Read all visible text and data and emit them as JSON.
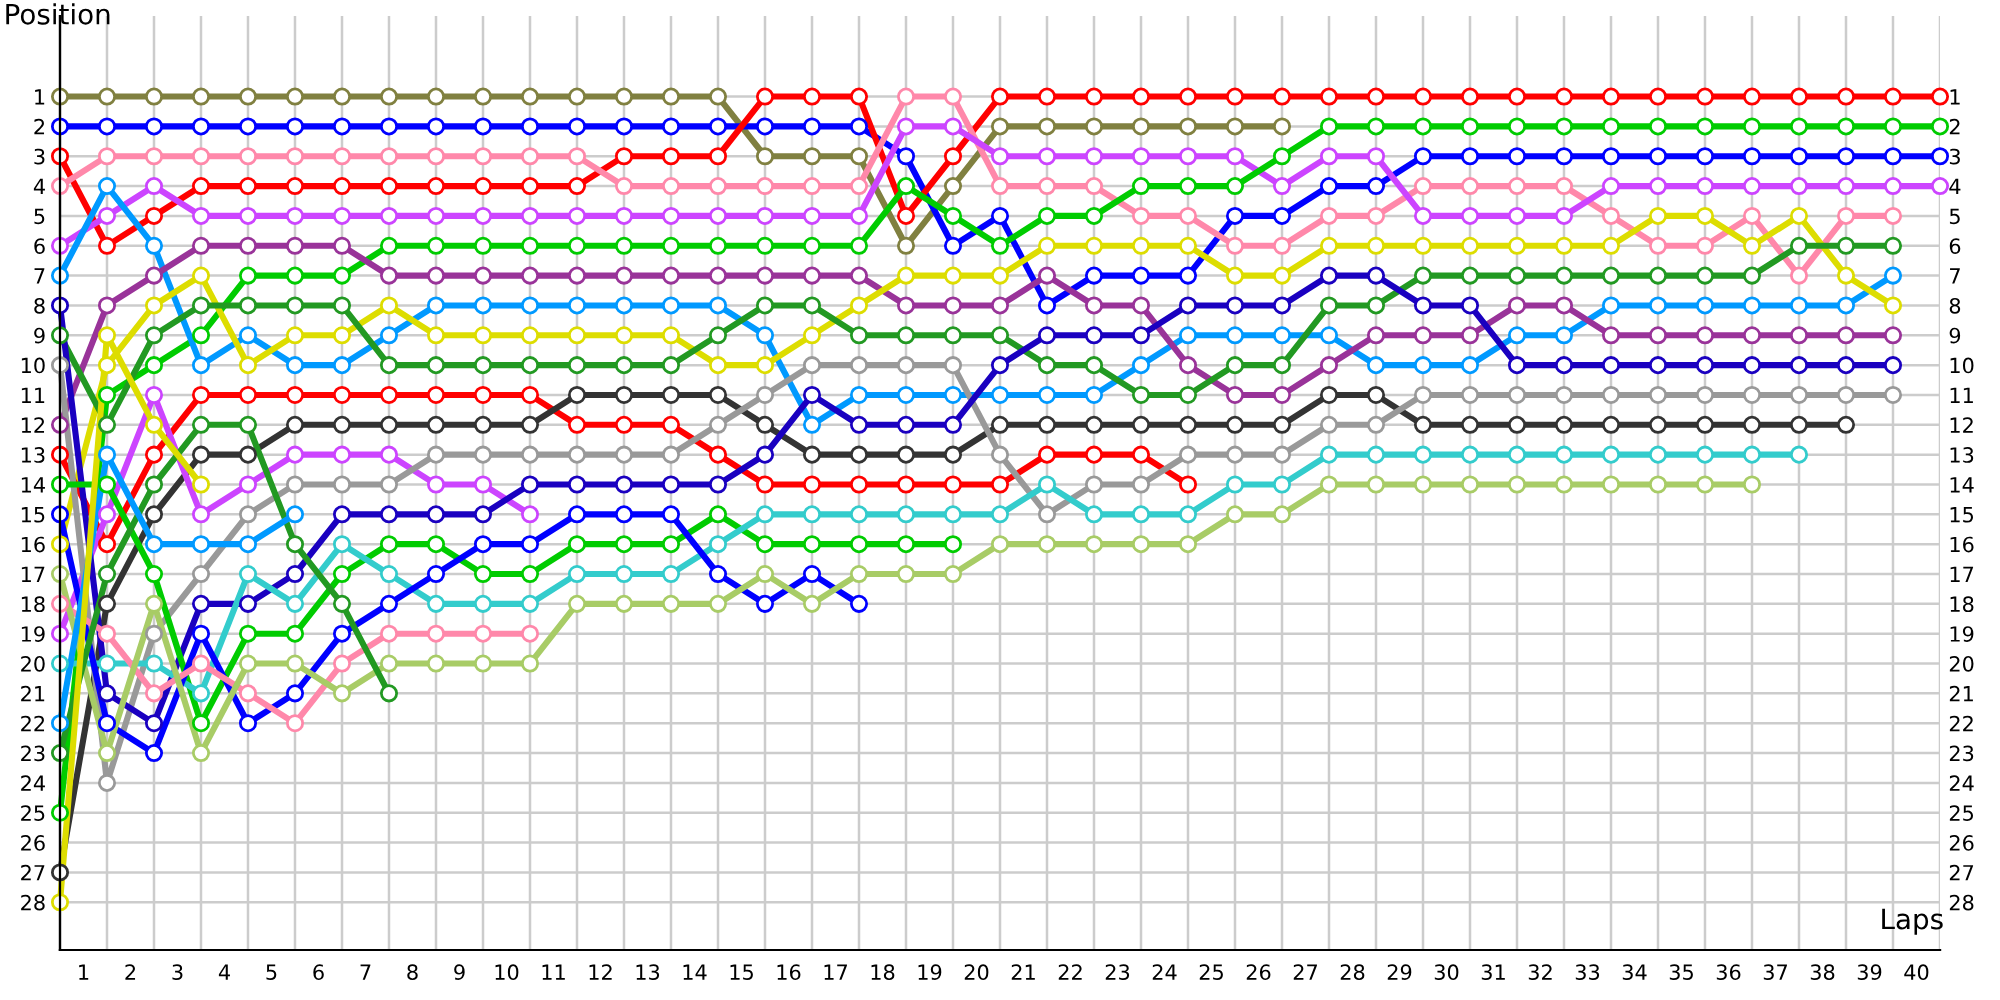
{
  "chart_data": {
    "type": "line",
    "xlabel": "Laps",
    "ylabel": "Position",
    "x": [
      0,
      1,
      2,
      3,
      4,
      5,
      6,
      7,
      8,
      9,
      10,
      11,
      12,
      13,
      14,
      15,
      16,
      17,
      18,
      19,
      20,
      21,
      22,
      23,
      24,
      25,
      26,
      27,
      28,
      29,
      30,
      31,
      32,
      33,
      34,
      35,
      36,
      37,
      38,
      39,
      40
    ],
    "xlim": [
      0,
      40
    ],
    "xticks": [
      {
        "value": 0.5,
        "label": "1"
      },
      {
        "value": 1.5,
        "label": "2"
      },
      {
        "value": 2.5,
        "label": "3"
      },
      {
        "value": 3.5,
        "label": "4"
      },
      {
        "value": 4.5,
        "label": "5"
      },
      {
        "value": 5.5,
        "label": "6"
      },
      {
        "value": 6.5,
        "label": "7"
      },
      {
        "value": 7.5,
        "label": "8"
      },
      {
        "value": 8.5,
        "label": "9"
      },
      {
        "value": 9.5,
        "label": "10"
      },
      {
        "value": 10.5,
        "label": "11"
      },
      {
        "value": 11.5,
        "label": "12"
      },
      {
        "value": 12.5,
        "label": "13"
      },
      {
        "value": 13.5,
        "label": "14"
      },
      {
        "value": 14.5,
        "label": "15"
      },
      {
        "value": 15.5,
        "label": "16"
      },
      {
        "value": 16.5,
        "label": "17"
      },
      {
        "value": 17.5,
        "label": "18"
      },
      {
        "value": 18.5,
        "label": "19"
      },
      {
        "value": 19.5,
        "label": "20"
      },
      {
        "value": 20.5,
        "label": "21"
      },
      {
        "value": 21.5,
        "label": "22"
      },
      {
        "value": 22.5,
        "label": "23"
      },
      {
        "value": 23.5,
        "label": "24"
      },
      {
        "value": 24.5,
        "label": "25"
      },
      {
        "value": 25.5,
        "label": "26"
      },
      {
        "value": 26.5,
        "label": "27"
      },
      {
        "value": 27.5,
        "label": "28"
      },
      {
        "value": 28.5,
        "label": "29"
      },
      {
        "value": 29.5,
        "label": "30"
      },
      {
        "value": 30.5,
        "label": "31"
      },
      {
        "value": 31.5,
        "label": "32"
      },
      {
        "value": 32.5,
        "label": "33"
      },
      {
        "value": 33.5,
        "label": "34"
      },
      {
        "value": 34.5,
        "label": "35"
      },
      {
        "value": 35.5,
        "label": "36"
      },
      {
        "value": 36.5,
        "label": "37"
      },
      {
        "value": 37.5,
        "label": "38"
      },
      {
        "value": 38.5,
        "label": "39"
      },
      {
        "value": 39.5,
        "label": "40"
      }
    ],
    "ylim": [
      29.6,
      -1.7
    ],
    "yticks": [
      1,
      2,
      3,
      4,
      5,
      6,
      7,
      8,
      9,
      10,
      11,
      12,
      13,
      14,
      15,
      16,
      17,
      18,
      19,
      20,
      21,
      22,
      23,
      24,
      25,
      26,
      27,
      28
    ],
    "y2lim": [
      29.6,
      -1.7
    ],
    "y2ticks": [
      1,
      2,
      3,
      4,
      5,
      6,
      7,
      8,
      9,
      10,
      11,
      12,
      13,
      14,
      15,
      16,
      17,
      18,
      19,
      20,
      21,
      22,
      23,
      24,
      25,
      26,
      27,
      28
    ],
    "grid": true,
    "marker": "circle",
    "line_style": "solid",
    "series": [
      {
        "color": "#808040",
        "values": [
          1,
          1,
          1,
          1,
          1,
          1,
          1,
          1,
          1,
          1,
          1,
          1,
          1,
          1,
          1,
          3,
          3,
          3,
          6,
          4,
          2,
          2,
          2,
          2,
          2,
          2,
          2,
          null,
          null,
          null,
          null,
          null,
          null,
          null,
          null,
          null,
          null,
          null,
          null,
          null,
          null
        ]
      },
      {
        "color": "#0000ff",
        "values": [
          2,
          2,
          2,
          2,
          2,
          2,
          2,
          2,
          2,
          2,
          2,
          2,
          2,
          2,
          2,
          2,
          2,
          2,
          3,
          6,
          5,
          8,
          7,
          7,
          7,
          5,
          5,
          4,
          4,
          3,
          3,
          3,
          3,
          3,
          3,
          3,
          3,
          3,
          3,
          3,
          3
        ]
      },
      {
        "color": "#ff0000",
        "values": [
          3,
          6,
          5,
          4,
          4,
          4,
          4,
          4,
          4,
          4,
          4,
          4,
          3,
          3,
          3,
          1,
          1,
          1,
          5,
          3,
          1,
          1,
          1,
          1,
          1,
          1,
          1,
          1,
          1,
          1,
          1,
          1,
          1,
          1,
          1,
          1,
          1,
          1,
          1,
          1,
          1
        ]
      },
      {
        "color": "#ff88aa",
        "values": [
          4,
          3,
          3,
          3,
          3,
          3,
          3,
          3,
          3,
          3,
          3,
          3,
          4,
          4,
          4,
          4,
          4,
          4,
          1,
          1,
          4,
          4,
          4,
          5,
          5,
          6,
          6,
          5,
          5,
          4,
          4,
          4,
          4,
          5,
          6,
          6,
          5,
          7,
          5,
          5,
          null
        ]
      },
      {
        "color": "#cc44ff",
        "values": [
          6,
          5,
          4,
          5,
          5,
          5,
          5,
          5,
          5,
          5,
          5,
          5,
          5,
          5,
          5,
          5,
          5,
          5,
          2,
          2,
          3,
          3,
          3,
          3,
          3,
          3,
          4,
          3,
          3,
          5,
          5,
          5,
          5,
          4,
          4,
          4,
          4,
          4,
          4,
          4,
          4
        ]
      },
      {
        "color": "#00cc00",
        "values": [
          25,
          11,
          10,
          9,
          7,
          7,
          7,
          6,
          6,
          6,
          6,
          6,
          6,
          6,
          6,
          6,
          6,
          6,
          4,
          5,
          6,
          5,
          5,
          4,
          4,
          4,
          3,
          2,
          2,
          2,
          2,
          2,
          2,
          2,
          2,
          2,
          2,
          2,
          2,
          2,
          2
        ]
      },
      {
        "color": "#0099ff",
        "values": [
          7,
          4,
          6,
          10,
          9,
          10,
          10,
          9,
          8,
          8,
          8,
          8,
          8,
          8,
          8,
          9,
          12,
          11,
          11,
          11,
          11,
          11,
          11,
          10,
          9,
          9,
          9,
          9,
          10,
          10,
          10,
          9,
          9,
          8,
          8,
          8,
          8,
          8,
          8,
          7,
          null
        ]
      },
      {
        "color": "#993399",
        "values": [
          12,
          8,
          7,
          6,
          6,
          6,
          6,
          7,
          7,
          7,
          7,
          7,
          7,
          7,
          7,
          7,
          7,
          7,
          8,
          8,
          8,
          7,
          8,
          8,
          10,
          11,
          11,
          10,
          9,
          9,
          9,
          8,
          8,
          9,
          9,
          9,
          9,
          9,
          9,
          9,
          null
        ]
      },
      {
        "color": "#dddd00",
        "values": [
          16,
          10,
          8,
          7,
          10,
          9,
          9,
          8,
          9,
          9,
          9,
          9,
          9,
          9,
          10,
          10,
          9,
          8,
          7,
          7,
          7,
          6,
          6,
          6,
          6,
          7,
          7,
          6,
          6,
          6,
          6,
          6,
          6,
          6,
          5,
          5,
          6,
          5,
          7,
          8,
          null
        ]
      },
      {
        "color": "#229922",
        "values": [
          9,
          12,
          9,
          8,
          8,
          8,
          8,
          10,
          10,
          10,
          10,
          10,
          10,
          10,
          9,
          8,
          8,
          9,
          9,
          9,
          9,
          10,
          10,
          11,
          11,
          10,
          10,
          8,
          8,
          7,
          7,
          7,
          7,
          7,
          7,
          7,
          7,
          6,
          6,
          6,
          null
        ]
      },
      {
        "color": "#ff0000",
        "values": [
          13,
          16,
          13,
          11,
          11,
          11,
          11,
          11,
          11,
          11,
          11,
          12,
          12,
          12,
          13,
          14,
          14,
          14,
          14,
          14,
          14,
          13,
          13,
          13,
          14,
          null,
          null,
          null,
          null,
          null,
          null,
          null,
          null,
          null,
          null,
          null,
          null,
          null,
          null,
          null,
          null
        ]
      },
      {
        "color": "#333333",
        "values": [
          27,
          18,
          15,
          13,
          13,
          12,
          12,
          12,
          12,
          12,
          12,
          11,
          11,
          11,
          11,
          12,
          13,
          13,
          13,
          13,
          12,
          12,
          12,
          12,
          12,
          12,
          12,
          11,
          11,
          12,
          12,
          12,
          12,
          12,
          12,
          12,
          12,
          12,
          12,
          null,
          null
        ]
      },
      {
        "color": "#cc44ff",
        "values": [
          19,
          15,
          11,
          15,
          14,
          13,
          13,
          13,
          14,
          14,
          15,
          null,
          null,
          null,
          null,
          null,
          null,
          null,
          null,
          null,
          null,
          null,
          null,
          null,
          null,
          null,
          null,
          null,
          null,
          null,
          null,
          null,
          null,
          null,
          null,
          null,
          null,
          null,
          null,
          null,
          null
        ]
      },
      {
        "color": "#999999",
        "values": [
          10,
          24,
          19,
          17,
          15,
          14,
          14,
          14,
          13,
          13,
          13,
          13,
          13,
          13,
          12,
          11,
          10,
          10,
          10,
          10,
          13,
          15,
          14,
          14,
          13,
          13,
          13,
          12,
          12,
          11,
          11,
          11,
          11,
          11,
          11,
          11,
          11,
          11,
          11,
          11,
          null
        ]
      },
      {
        "color": "#1a00c0",
        "values": [
          8,
          21,
          22,
          18,
          18,
          17,
          15,
          15,
          15,
          15,
          14,
          14,
          14,
          14,
          14,
          13,
          11,
          12,
          12,
          12,
          10,
          9,
          9,
          9,
          8,
          8,
          8,
          7,
          7,
          8,
          8,
          10,
          10,
          10,
          10,
          10,
          10,
          10,
          10,
          10,
          null
        ]
      },
      {
        "color": "#00cc00",
        "values": [
          14,
          14,
          17,
          22,
          19,
          19,
          17,
          16,
          16,
          17,
          17,
          16,
          16,
          16,
          15,
          16,
          16,
          16,
          16,
          16,
          null,
          null,
          null,
          null,
          null,
          null,
          null,
          null,
          null,
          null,
          null,
          null,
          null,
          null,
          null,
          null,
          null,
          null,
          null,
          null,
          null
        ]
      },
      {
        "color": "#33cccc",
        "values": [
          20,
          20,
          20,
          21,
          17,
          18,
          16,
          17,
          18,
          18,
          18,
          17,
          17,
          17,
          16,
          15,
          15,
          15,
          15,
          15,
          15,
          14,
          15,
          15,
          15,
          14,
          14,
          13,
          13,
          13,
          13,
          13,
          13,
          13,
          13,
          13,
          13,
          13,
          null,
          null,
          null
        ]
      },
      {
        "color": "#0000ff",
        "values": [
          15,
          22,
          23,
          19,
          22,
          21,
          19,
          18,
          17,
          16,
          16,
          15,
          15,
          15,
          17,
          18,
          17,
          18,
          null,
          null,
          null,
          null,
          null,
          null,
          null,
          null,
          null,
          null,
          null,
          null,
          null,
          null,
          null,
          null,
          null,
          null,
          null,
          null,
          null,
          null,
          null
        ]
      },
      {
        "color": "#ff88aa",
        "values": [
          18,
          19,
          21,
          20,
          21,
          22,
          20,
          19,
          19,
          19,
          19,
          null,
          null,
          null,
          null,
          null,
          null,
          null,
          null,
          null,
          null,
          null,
          null,
          null,
          null,
          null,
          null,
          null,
          null,
          null,
          null,
          null,
          null,
          null,
          null,
          null,
          null,
          null,
          null,
          null,
          null
        ]
      },
      {
        "color": "#a8cc66",
        "values": [
          17,
          23,
          18,
          23,
          20,
          20,
          21,
          20,
          20,
          20,
          20,
          18,
          18,
          18,
          18,
          17,
          18,
          17,
          17,
          17,
          16,
          16,
          16,
          16,
          16,
          15,
          15,
          14,
          14,
          14,
          14,
          14,
          14,
          14,
          14,
          14,
          14,
          null,
          null,
          null,
          null
        ]
      },
      {
        "color": "#229922",
        "values": [
          23,
          17,
          14,
          12,
          12,
          16,
          18,
          21,
          null,
          null,
          null,
          null,
          null,
          null,
          null,
          null,
          null,
          null,
          null,
          null,
          null,
          null,
          null,
          null,
          null,
          null,
          null,
          null,
          null,
          null,
          null,
          null,
          null,
          null,
          null,
          null,
          null,
          null,
          null,
          null,
          null
        ]
      },
      {
        "color": "#0099ff",
        "values": [
          22,
          13,
          16,
          16,
          16,
          15,
          null,
          null,
          null,
          null,
          null,
          null,
          null,
          null,
          null,
          null,
          null,
          null,
          null,
          null,
          null,
          null,
          null,
          null,
          null,
          null,
          null,
          null,
          null,
          null,
          null,
          null,
          null,
          null,
          null,
          null,
          null,
          null,
          null,
          null,
          null
        ]
      },
      {
        "color": "#dddd00",
        "values": [
          28,
          9,
          12,
          14,
          null,
          null,
          null,
          null,
          null,
          null,
          null,
          null,
          null,
          null,
          null,
          null,
          null,
          null,
          null,
          null,
          null,
          null,
          null,
          null,
          null,
          null,
          null,
          null,
          null,
          null,
          null,
          null,
          null,
          null,
          null,
          null,
          null,
          null,
          null,
          null,
          null
        ]
      }
    ]
  }
}
